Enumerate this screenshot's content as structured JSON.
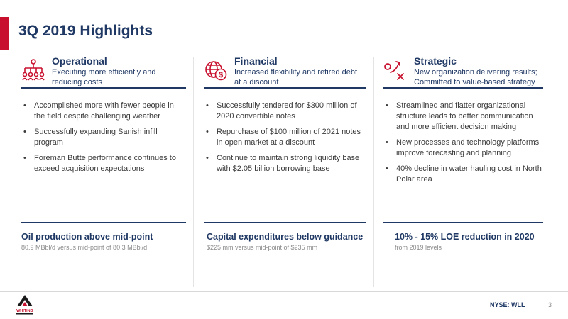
{
  "slide": {
    "title": "3Q 2019 Highlights",
    "accent_color": "#c8102e",
    "navy_color": "#1f3864"
  },
  "columns": [
    {
      "icon": "org-chart-icon",
      "title": "Operational",
      "subtitle": "Executing more efficiently and reducing costs",
      "bullets": [
        "Accomplished more with fewer people in the field despite challenging weather",
        "Successfully expanding Sanish infill program",
        "Foreman Butte performance continues to exceed acquisition expectations"
      ],
      "callout_title": "Oil production above mid-point",
      "callout_sub": "80.9 MBbl/d versus mid-point of 80.3 MBbl/d"
    },
    {
      "icon": "globe-dollar-icon",
      "title": "Financial",
      "subtitle": "Increased flexibility and retired debt at a discount",
      "bullets": [
        "Successfully tendered for $300 million of 2020 convertible notes",
        "Repurchase of $100 million of 2021 notes in open market at a discount",
        "Continue to maintain strong liquidity base with $2.05 billion borrowing base"
      ],
      "callout_title": "Capital expenditures below guidance",
      "callout_sub": "$225 mm versus mid-point of $235 mm"
    },
    {
      "icon": "strategy-play-icon",
      "title": "Strategic",
      "subtitle": "New organization delivering results; Committed to value-based strategy",
      "bullets": [
        "Streamlined and flatter organizational structure leads to better communication and more efficient decision making",
        "New processes and technology platforms improve forecasting and planning",
        "40% decline in water hauling cost in North Polar area"
      ],
      "callout_title": "10% - 15% LOE reduction in 2020",
      "callout_sub": "from 2019 levels"
    }
  ],
  "footer": {
    "logo_text": "WHITING",
    "ticker": "NYSE: WLL",
    "page_number": "3"
  }
}
